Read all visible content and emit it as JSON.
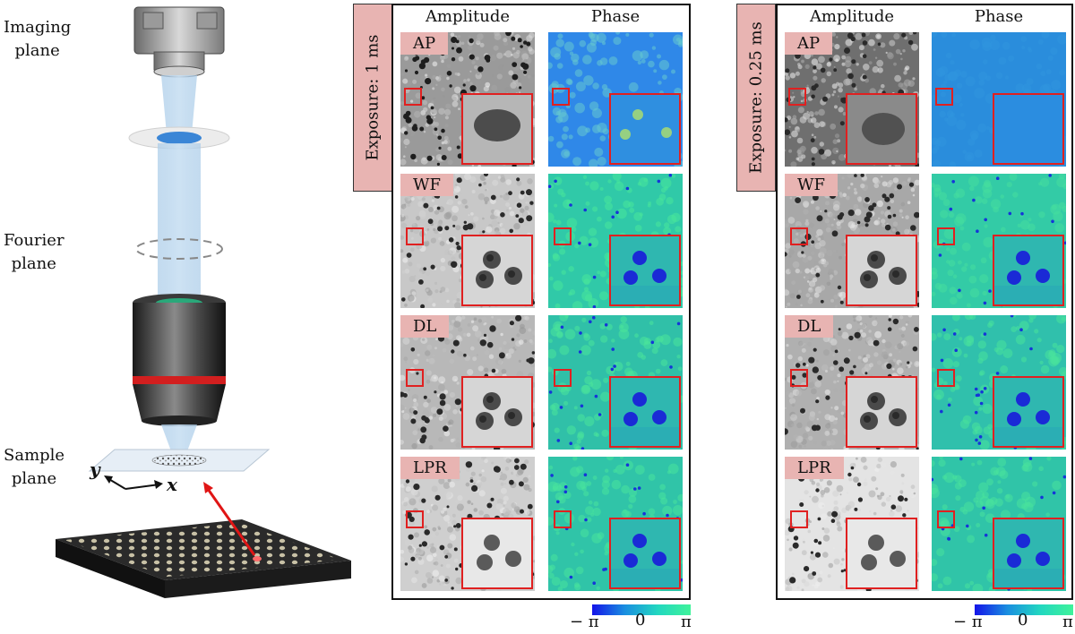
{
  "left": {
    "imaging_plane": [
      "Imaging",
      "plane"
    ],
    "fourier_plane": [
      "Fourier",
      "plane"
    ],
    "sample_plane": [
      "Sample",
      "plane"
    ],
    "axis_y": "y",
    "axis_x": "x"
  },
  "panels": [
    {
      "exposure": "Exposure: 1 ms",
      "col_amplitude": "Amplitude",
      "col_phase": "Phase",
      "rows": [
        "AP",
        "WF",
        "DL",
        "LPR"
      ]
    },
    {
      "exposure": "Exposure: 0.25 ms",
      "col_amplitude": "Amplitude",
      "col_phase": "Phase",
      "rows": [
        "AP",
        "WF",
        "DL",
        "LPR"
      ]
    }
  ],
  "colorbar": {
    "min": "− π",
    "mid": "0",
    "max": "π"
  },
  "colors": {
    "label_fill": "#e8b4b2",
    "roi": "#e02020",
    "phase_low": "#1414e8",
    "phase_high": "#3ff39a"
  }
}
